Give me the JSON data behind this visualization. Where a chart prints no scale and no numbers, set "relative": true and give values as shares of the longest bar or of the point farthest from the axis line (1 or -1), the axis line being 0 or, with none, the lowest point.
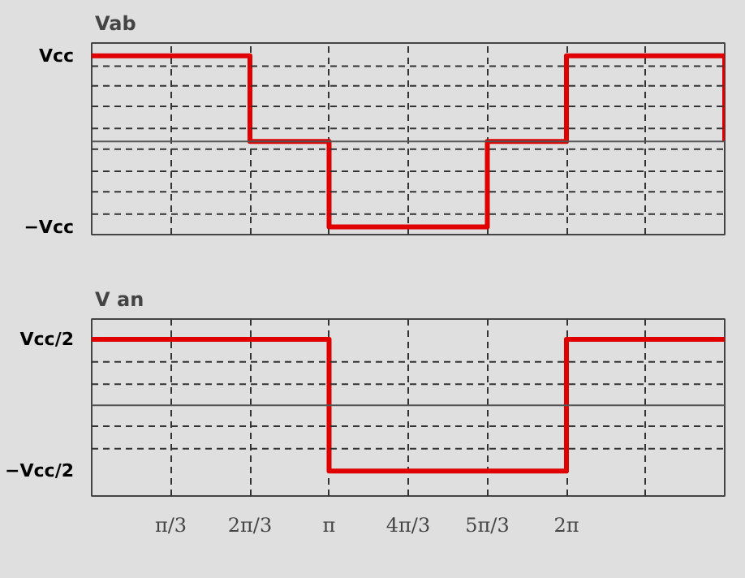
{
  "chart_data": [
    {
      "type": "step",
      "title": "Vab",
      "relative": true,
      "categories": [
        null,
        null,
        null,
        null,
        null,
        null,
        null,
        null,
        null
      ],
      "series": [
        {
          "color": "#e00000",
          "values": [
            1,
            1,
            0,
            -1,
            -1,
            0,
            1,
            1,
            0
          ]
        }
      ],
      "annotations": [
        "Vcc",
        "−Vcc"
      ],
      "grid": "x",
      "ref_lines": [
        {
          "axis": "y",
          "value": 0,
          "color": "#555555",
          "line_style": "solid"
        },
        {
          "axis": "y",
          "value": 0.88,
          "color": "#333333",
          "line_style": "dashed"
        },
        {
          "axis": "y",
          "value": 0.65,
          "color": "#333333",
          "line_style": "dashed"
        },
        {
          "axis": "y",
          "value": 0.41,
          "color": "#333333",
          "line_style": "dashed"
        },
        {
          "axis": "y",
          "value": 0.15,
          "color": "#333333",
          "line_style": "dashed"
        },
        {
          "axis": "y",
          "value": -0.09,
          "color": "#333333",
          "line_style": "dashed"
        },
        {
          "axis": "y",
          "value": -0.35,
          "color": "#333333",
          "line_style": "dashed"
        },
        {
          "axis": "y",
          "value": -0.59,
          "color": "#333333",
          "line_style": "dashed"
        },
        {
          "axis": "y",
          "value": -0.85,
          "color": "#333333",
          "line_style": "dashed"
        }
      ],
      "line_style": "solid"
    },
    {
      "type": "step",
      "title": "V an",
      "relative": true,
      "categories": [
        null,
        "π/3",
        "2π/3",
        "π",
        "4π/3",
        "5π/3",
        "2π",
        null,
        null
      ],
      "series": [
        {
          "color": "#e00000",
          "values": [
            1,
            1,
            1,
            -1,
            -1,
            -1,
            1,
            1,
            1
          ]
        }
      ],
      "annotations": [
        "Vcc/2",
        "−Vcc/2"
      ],
      "grid": "x",
      "ref_lines": [
        {
          "axis": "y",
          "value": 0,
          "color": "#555555",
          "line_style": "solid"
        },
        {
          "axis": "y",
          "value": 0.66,
          "color": "#333333",
          "line_style": "dashed"
        },
        {
          "axis": "y",
          "value": 0.32,
          "color": "#333333",
          "line_style": "dashed"
        },
        {
          "axis": "y",
          "value": -0.32,
          "color": "#333333",
          "line_style": "dashed"
        },
        {
          "axis": "y",
          "value": -0.66,
          "color": "#333333",
          "line_style": "dashed"
        }
      ],
      "line_style": "solid"
    }
  ]
}
